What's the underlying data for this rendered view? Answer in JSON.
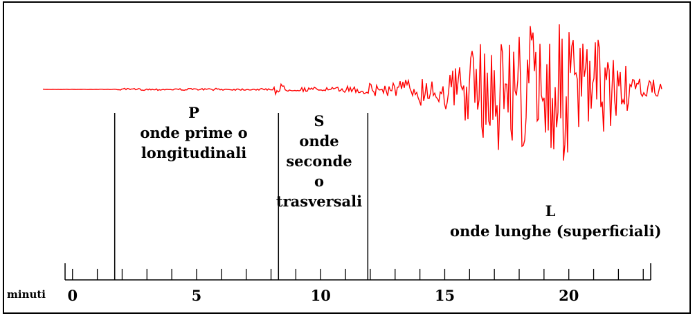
{
  "phases": {
    "p": {
      "letter": "P",
      "line1": "onde prime o",
      "line2": "longitudinali"
    },
    "s": {
      "letter": "S",
      "line1": "onde",
      "line2": "seconde",
      "line3": "o",
      "line4": "trasversali"
    },
    "l": {
      "letter": "L",
      "line1": "onde lunghe (superficiali)"
    }
  },
  "axis": {
    "title": "minuti",
    "tick_labels": [
      "0",
      "5",
      "10",
      "15",
      "20"
    ],
    "range_minutes": [
      -0.3,
      23.3
    ],
    "minor_tick_step": 1
  },
  "phase_boundaries_minutes": [
    1.7,
    8.3,
    11.9
  ],
  "colors": {
    "trace": "#ff0000",
    "lines": "#000000",
    "frame": "#000000"
  }
}
